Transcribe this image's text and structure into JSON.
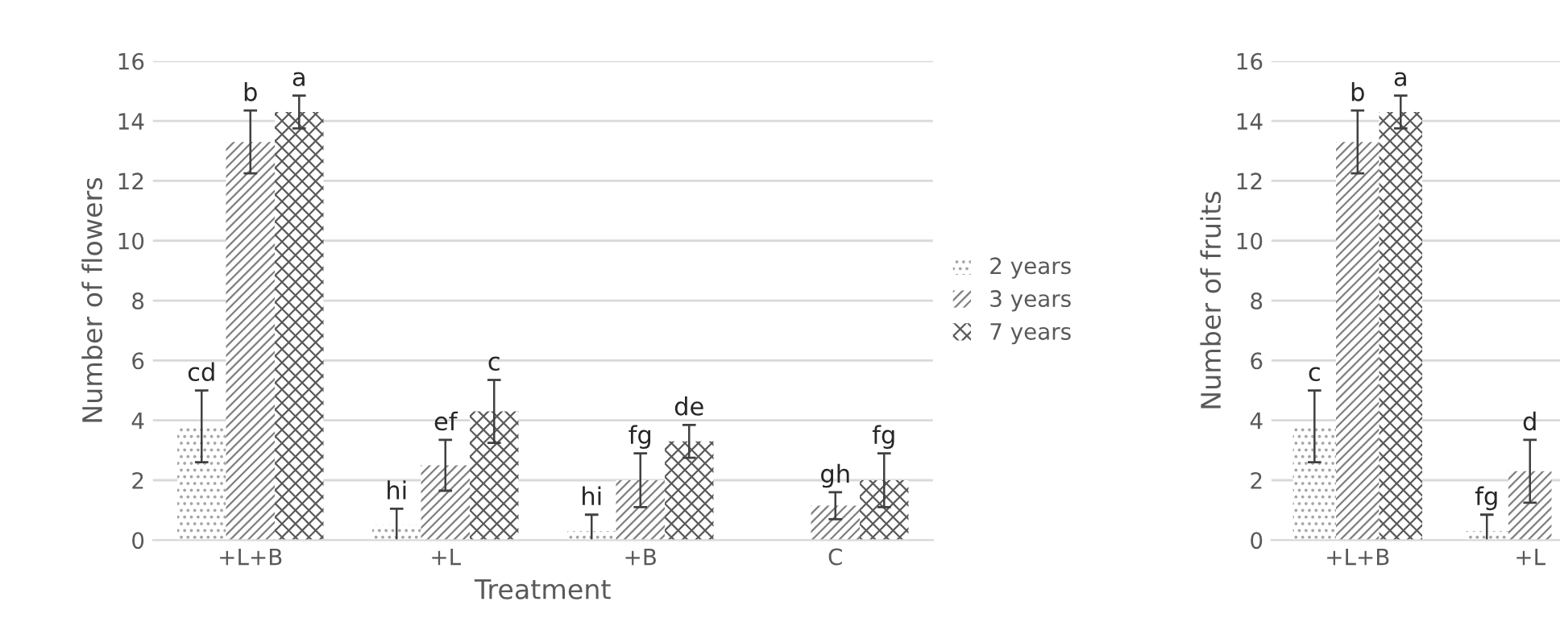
{
  "chart_data": [
    {
      "type": "bar",
      "xlabel": "Treatment",
      "ylabel": "Number of flowers",
      "categories": [
        "+L+B",
        "+L",
        "+B",
        "C"
      ],
      "ylim": [
        0,
        16
      ],
      "yticks": [
        0,
        2,
        4,
        6,
        8,
        10,
        12,
        14,
        16
      ],
      "grid": "y",
      "legend": "right",
      "series": [
        {
          "name": "2 years",
          "color": "#a6a6a6",
          "values": [
            3.8,
            0.5,
            0.3,
            null
          ],
          "errors": [
            1.2,
            0.55,
            0.55,
            null
          ],
          "value_labels": [
            "cd",
            "hi",
            "hi",
            null
          ]
        },
        {
          "name": "3 years",
          "color": "#7f7f7f",
          "values": [
            13.3,
            2.5,
            2.0,
            1.15
          ],
          "errors": [
            1.05,
            0.85,
            0.9,
            0.45
          ],
          "value_labels": [
            "b",
            "ef",
            "fg",
            "gh"
          ]
        },
        {
          "name": "7 years",
          "color": "#595959",
          "values": [
            14.3,
            4.3,
            3.3,
            2.0
          ],
          "errors": [
            0.55,
            1.05,
            0.55,
            0.9
          ],
          "value_labels": [
            "a",
            "c",
            "de",
            "fg"
          ]
        }
      ]
    },
    {
      "type": "bar",
      "ylabel": "Number of fruits",
      "categories": [
        "+L+B",
        "+L"
      ],
      "ylim": [
        0,
        16
      ],
      "yticks": [
        0,
        2,
        4,
        6,
        8,
        10,
        12,
        14,
        16
      ],
      "grid": "y",
      "series": [
        {
          "color": "#a6a6a6",
          "values": [
            3.8,
            0.3
          ],
          "errors": [
            1.2,
            0.55
          ],
          "value_labels": [
            "c",
            "fg"
          ]
        },
        {
          "color": "#7f7f7f",
          "values": [
            13.3,
            2.3
          ],
          "errors": [
            1.05,
            1.05
          ],
          "value_labels": [
            "b",
            "d"
          ]
        },
        {
          "color": "#595959",
          "values": [
            14.3,
            null
          ],
          "errors": [
            0.55,
            null
          ],
          "value_labels": [
            "a",
            null
          ]
        }
      ]
    }
  ]
}
